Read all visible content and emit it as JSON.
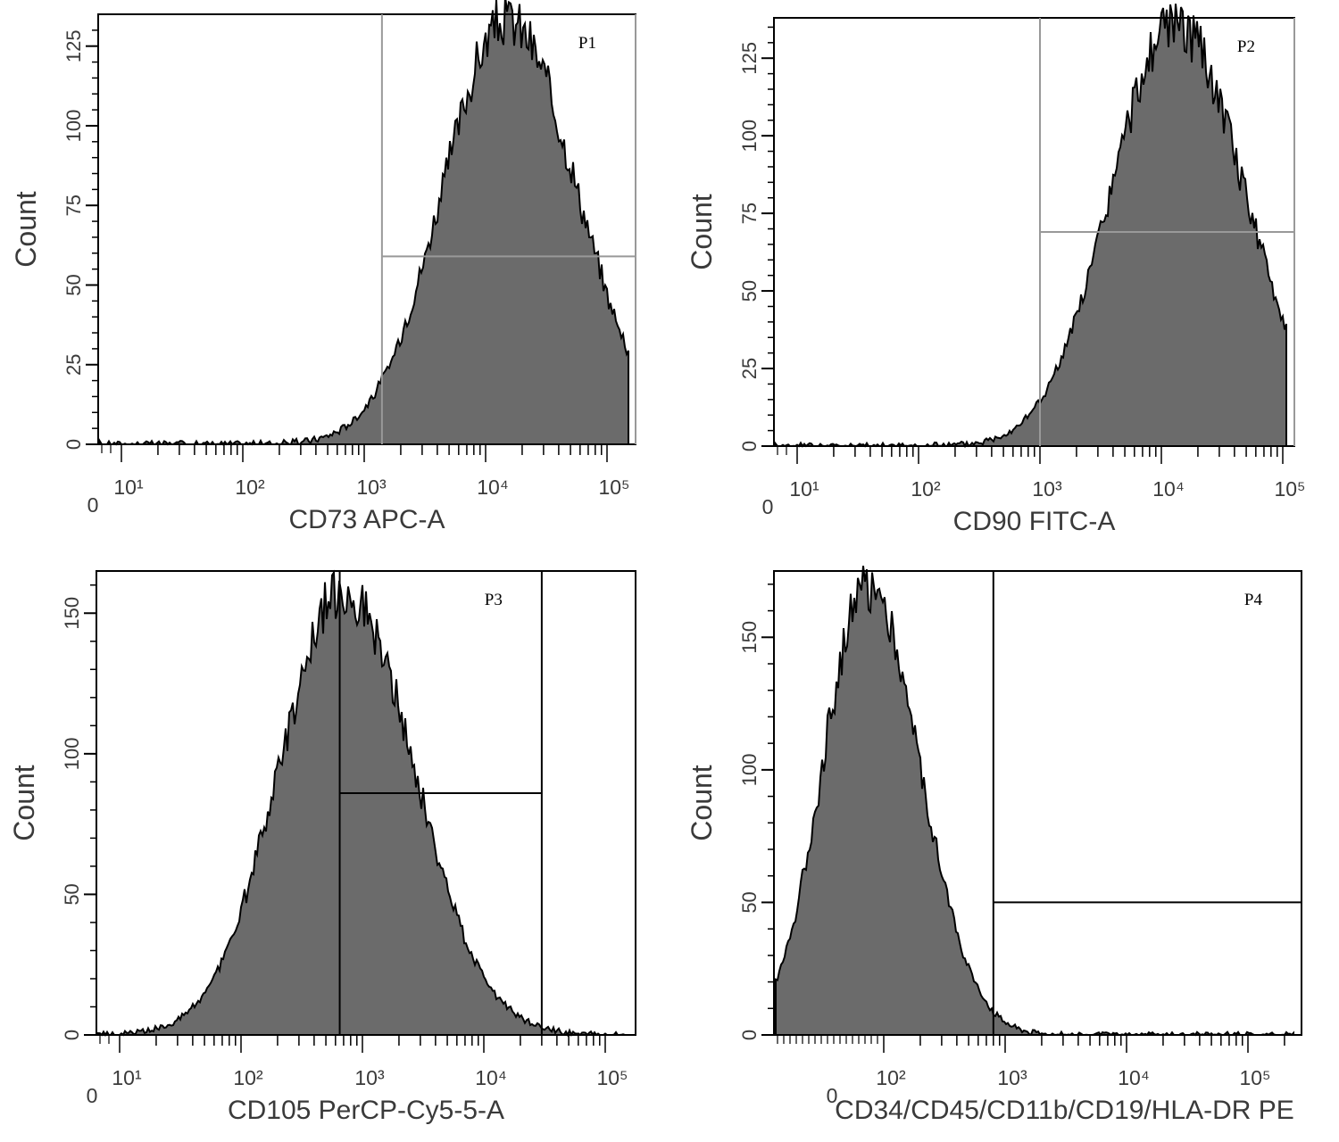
{
  "chart_data": [
    {
      "type": "histogram",
      "gate_label": "P1",
      "xlabel": "CD73 APC-A",
      "ylabel": "Count",
      "x_scale": "biexponential",
      "ylim": [
        0,
        135
      ],
      "y_ticks": [
        "0",
        "25",
        "50",
        "75",
        "100",
        "125"
      ],
      "x_ticks": [
        {
          "label": "0",
          "value": 0
        },
        {
          "label": "10¹",
          "value": 10
        },
        {
          "label": "10²",
          "value": 100
        },
        {
          "label": "10³",
          "value": 1000
        },
        {
          "label": "10⁴",
          "value": 10000
        },
        {
          "label": "10⁵",
          "value": 100000
        }
      ],
      "peak": {
        "x": 15000,
        "count": 133
      },
      "gate": {
        "x_min": 1400,
        "x_max": 220000,
        "count_level": 59
      },
      "gate_color": "#999999",
      "fill_color": "#6b6b6b"
    },
    {
      "type": "histogram",
      "gate_label": "P2",
      "xlabel": "CD90 FITC-A",
      "ylabel": "Count",
      "x_scale": "biexponential",
      "ylim": [
        0,
        138
      ],
      "y_ticks": [
        "0",
        "25",
        "50",
        "75",
        "100",
        "125"
      ],
      "x_ticks": [
        {
          "label": "0",
          "value": 0
        },
        {
          "label": "10¹",
          "value": 10
        },
        {
          "label": "10²",
          "value": 100
        },
        {
          "label": "10³",
          "value": 1000
        },
        {
          "label": "10⁴",
          "value": 10000
        },
        {
          "label": "10⁵",
          "value": 100000
        }
      ],
      "peak": {
        "x": 13000,
        "count": 136
      },
      "gate": {
        "x_min": 1000,
        "x_max": 200000,
        "count_level": 69
      },
      "gate_color": "#999999",
      "fill_color": "#6b6b6b"
    },
    {
      "type": "histogram",
      "gate_label": "P3",
      "xlabel": "CD105 PerCP-Cy5-5-A",
      "ylabel": "Count",
      "x_scale": "biexponential",
      "ylim": [
        0,
        165
      ],
      "y_ticks": [
        "0",
        "50",
        "100",
        "150"
      ],
      "x_ticks": [
        {
          "label": "0",
          "value": 0
        },
        {
          "label": "10¹",
          "value": 10
        },
        {
          "label": "10²",
          "value": 100
        },
        {
          "label": "10³",
          "value": 1000
        },
        {
          "label": "10⁴",
          "value": 10000
        },
        {
          "label": "10⁵",
          "value": 100000
        }
      ],
      "peak": {
        "x": 700,
        "count": 158
      },
      "gate": {
        "x_min": 650,
        "x_max": 30000,
        "count_level": 86
      },
      "gate_color": "#000000",
      "fill_color": "#6b6b6b"
    },
    {
      "type": "histogram",
      "gate_label": "P4",
      "xlabel": "CD34/CD45/CD11b/CD19/HLA-DR PE",
      "ylabel": "Count",
      "x_scale": "biexponential",
      "ylim": [
        0,
        175
      ],
      "y_ticks": [
        "0",
        "50",
        "100",
        "150"
      ],
      "x_ticks": [
        {
          "label": "0",
          "value": 0
        },
        {
          "label": "10²",
          "value": 100
        },
        {
          "label": "10³",
          "value": 1000
        },
        {
          "label": "10⁴",
          "value": 10000
        },
        {
          "label": "10⁵",
          "value": 100000
        }
      ],
      "peak": {
        "x": 70,
        "count": 170
      },
      "gate": {
        "x_min": 800,
        "x_max": 300000,
        "count_level": 50
      },
      "gate_color": "#000000",
      "fill_color": "#6b6b6b"
    }
  ]
}
